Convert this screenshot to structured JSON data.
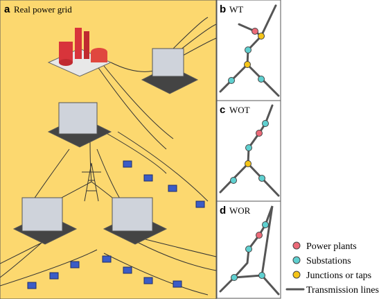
{
  "panels": [
    {
      "letter": "a",
      "title": "Real power grid"
    },
    {
      "letter": "b",
      "title": "WT"
    },
    {
      "letter": "c",
      "title": "WOT"
    },
    {
      "letter": "d",
      "title": "WOR"
    }
  ],
  "legend": [
    "Power plants",
    "Substations",
    "Junctions or taps",
    "Transmission lines"
  ]
}
